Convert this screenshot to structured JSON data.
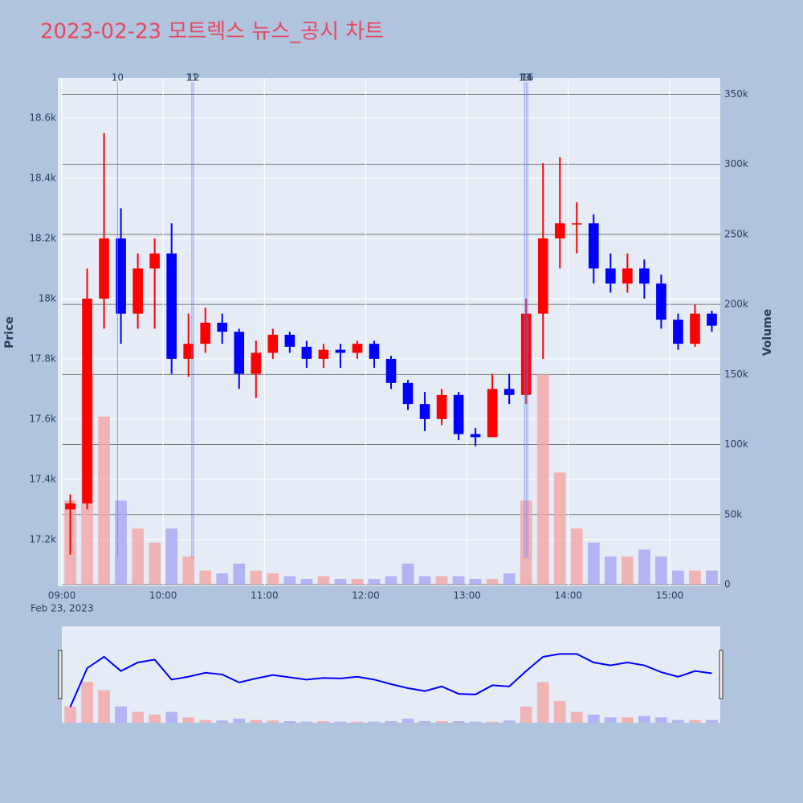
{
  "chart_data": {
    "type": "candlestick",
    "title": "2023-02-23 모트렉스 뉴스_공시 차트",
    "y_label": "Price",
    "y2_label": "Volume",
    "x_sublabel": "Feb 23, 2023",
    "increasing_color": "#ff0000",
    "decreasing_color": "#0000ff",
    "volume_increasing_color": "#f4a6a6",
    "volume_decreasing_color": "#a6a6f4",
    "x": [
      "09:00",
      "09:10",
      "09:20",
      "09:30",
      "09:40",
      "09:50",
      "10:00",
      "10:10",
      "10:20",
      "10:30",
      "10:40",
      "10:50",
      "11:00",
      "11:10",
      "11:20",
      "11:30",
      "11:40",
      "11:50",
      "12:00",
      "12:10",
      "12:20",
      "12:30",
      "12:40",
      "12:50",
      "13:00",
      "13:10",
      "13:20",
      "13:30",
      "13:40",
      "13:50",
      "14:00",
      "14:10",
      "14:20",
      "14:30",
      "14:40",
      "14:50",
      "15:00",
      "15:10",
      "15:20"
    ],
    "open": [
      17300,
      17320,
      18000,
      18200,
      17950,
      18100,
      18150,
      17800,
      17850,
      17920,
      17890,
      17750,
      17820,
      17880,
      17840,
      17800,
      17830,
      17820,
      17850,
      17800,
      17720,
      17650,
      17600,
      17680,
      17550,
      17540,
      17700,
      17680,
      17950,
      18200,
      18250,
      18250,
      18100,
      18050,
      18100,
      18050,
      17930,
      17850,
      17950
    ],
    "close": [
      17320,
      18000,
      18200,
      17950,
      18100,
      18150,
      17800,
      17850,
      17920,
      17890,
      17750,
      17820,
      17880,
      17840,
      17800,
      17830,
      17820,
      17850,
      17800,
      17720,
      17650,
      17600,
      17680,
      17550,
      17540,
      17700,
      17680,
      17950,
      18200,
      18250,
      18250,
      18100,
      18050,
      18100,
      18050,
      17930,
      17850,
      17950,
      17910
    ],
    "high": [
      17350,
      18100,
      18550,
      18300,
      18150,
      18200,
      18250,
      17950,
      17970,
      17950,
      17900,
      17860,
      17900,
      17890,
      17860,
      17850,
      17850,
      17860,
      17860,
      17810,
      17730,
      17690,
      17700,
      17690,
      17570,
      17750,
      17750,
      18000,
      18450,
      18470,
      18320,
      18280,
      18150,
      18150,
      18130,
      18080,
      17950,
      17980,
      17960
    ],
    "low": [
      17150,
      17300,
      17900,
      17850,
      17900,
      17900,
      17750,
      17740,
      17820,
      17850,
      17700,
      17670,
      17800,
      17820,
      17770,
      17770,
      17770,
      17800,
      17770,
      17700,
      17630,
      17560,
      17580,
      17530,
      17510,
      17540,
      17650,
      17650,
      17800,
      18100,
      18150,
      18050,
      18020,
      18020,
      18000,
      17900,
      17830,
      17840,
      17890
    ],
    "volume": [
      60000,
      150000,
      120000,
      60000,
      40000,
      30000,
      40000,
      20000,
      10000,
      8000,
      15000,
      10000,
      8000,
      6000,
      4000,
      6000,
      4000,
      4000,
      4000,
      6000,
      15000,
      6000,
      6000,
      6000,
      4000,
      4000,
      8000,
      60000,
      150000,
      80000,
      40000,
      30000,
      20000,
      20000,
      25000,
      20000,
      10000,
      10000,
      10000
    ],
    "xlim": [
      "09:00",
      "15:30"
    ],
    "xticks": [
      "09:00",
      "10:00",
      "11:00",
      "12:00",
      "13:00",
      "14:00",
      "15:00"
    ],
    "ylim": [
      17045,
      18733
    ],
    "yticks": [
      {
        "value": 17200,
        "label": "17.2k"
      },
      {
        "value": 17400,
        "label": "17.4k"
      },
      {
        "value": 17600,
        "label": "17.6k"
      },
      {
        "value": 17800,
        "label": "17.8k"
      },
      {
        "value": 18000,
        "label": "18k"
      },
      {
        "value": 18200,
        "label": "18.2k"
      },
      {
        "value": 18400,
        "label": "18.4k"
      },
      {
        "value": 18600,
        "label": "18.6k"
      }
    ],
    "y2lim": [
      0,
      356000
    ],
    "y2ticks": [
      0,
      {
        "value": 50000,
        "label": "50k"
      },
      {
        "value": 100000,
        "label": "100k"
      },
      {
        "value": 150000,
        "label": "150k"
      },
      {
        "value": 200000,
        "label": "200k"
      },
      {
        "value": 250000,
        "label": "250k"
      },
      {
        "value": 300000,
        "label": "300k"
      },
      {
        "value": 350000,
        "label": "350k"
      }
    ],
    "annotations": [
      {
        "x": "09:33",
        "label": "10"
      },
      {
        "x": "10:17",
        "label": "11"
      },
      {
        "x": "10:18",
        "label": "12"
      },
      {
        "x": "13:34",
        "label": "13"
      },
      {
        "x": "13:35",
        "label": "14"
      },
      {
        "x": "13:36",
        "label": "15"
      }
    ],
    "grid": true,
    "rangeslider": true
  }
}
